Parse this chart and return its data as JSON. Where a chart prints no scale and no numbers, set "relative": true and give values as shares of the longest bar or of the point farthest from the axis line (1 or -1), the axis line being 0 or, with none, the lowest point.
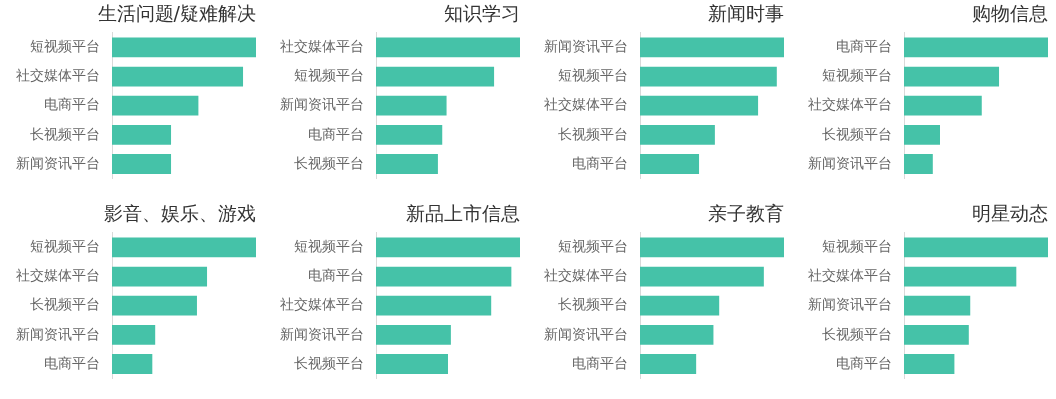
{
  "chart_data": [
    {
      "type": "bar",
      "orientation": "horizontal",
      "relative": true,
      "title": "生活问题/疑难解决",
      "categories": [
        "短视频平台",
        "社交媒体平台",
        "电商平台",
        "长视频平台",
        "新闻资讯平台"
      ],
      "values": [
        1,
        0.91,
        0.6,
        0.41,
        0.41
      ],
      "color": "#45c2a8",
      "legend": false
    },
    {
      "type": "bar",
      "orientation": "horizontal",
      "relative": true,
      "title": "知识学习",
      "categories": [
        "社交媒体平台",
        "短视频平台",
        "新闻资讯平台",
        "电商平台",
        "长视频平台"
      ],
      "values": [
        1,
        0.82,
        0.49,
        0.46,
        0.43
      ],
      "color": "#45c2a8",
      "legend": false
    },
    {
      "type": "bar",
      "orientation": "horizontal",
      "relative": true,
      "title": "新闻时事",
      "categories": [
        "新闻资讯平台",
        "短视频平台",
        "社交媒体平台",
        "长视频平台",
        "电商平台"
      ],
      "values": [
        1,
        0.95,
        0.82,
        0.52,
        0.41
      ],
      "color": "#45c2a8",
      "legend": false
    },
    {
      "type": "bar",
      "orientation": "horizontal",
      "relative": true,
      "title": "购物信息",
      "categories": [
        "电商平台",
        "短视频平台",
        "社交媒体平台",
        "长视频平台",
        "新闻资讯平台"
      ],
      "values": [
        1,
        0.66,
        0.54,
        0.25,
        0.2
      ],
      "color": "#45c2a8",
      "legend": false
    },
    {
      "type": "bar",
      "orientation": "horizontal",
      "relative": true,
      "title": "影音、娱乐、游戏",
      "categories": [
        "短视频平台",
        "社交媒体平台",
        "长视频平台",
        "新闻资讯平台",
        "电商平台"
      ],
      "values": [
        1,
        0.66,
        0.59,
        0.3,
        0.28
      ],
      "color": "#45c2a8",
      "legend": false
    },
    {
      "type": "bar",
      "orientation": "horizontal",
      "relative": true,
      "title": "新品上市信息",
      "categories": [
        "短视频平台",
        "电商平台",
        "社交媒体平台",
        "新闻资讯平台",
        "长视频平台"
      ],
      "values": [
        1,
        0.94,
        0.8,
        0.52,
        0.5
      ],
      "color": "#45c2a8",
      "legend": false
    },
    {
      "type": "bar",
      "orientation": "horizontal",
      "relative": true,
      "title": "亲子教育",
      "categories": [
        "短视频平台",
        "社交媒体平台",
        "长视频平台",
        "新闻资讯平台",
        "电商平台"
      ],
      "values": [
        1,
        0.86,
        0.55,
        0.51,
        0.39
      ],
      "color": "#45c2a8",
      "legend": false
    },
    {
      "type": "bar",
      "orientation": "horizontal",
      "relative": true,
      "title": "明星动态",
      "categories": [
        "短视频平台",
        "社交媒体平台",
        "新闻资讯平台",
        "长视频平台",
        "电商平台"
      ],
      "values": [
        1,
        0.78,
        0.46,
        0.45,
        0.35
      ],
      "color": "#45c2a8",
      "legend": false
    }
  ]
}
